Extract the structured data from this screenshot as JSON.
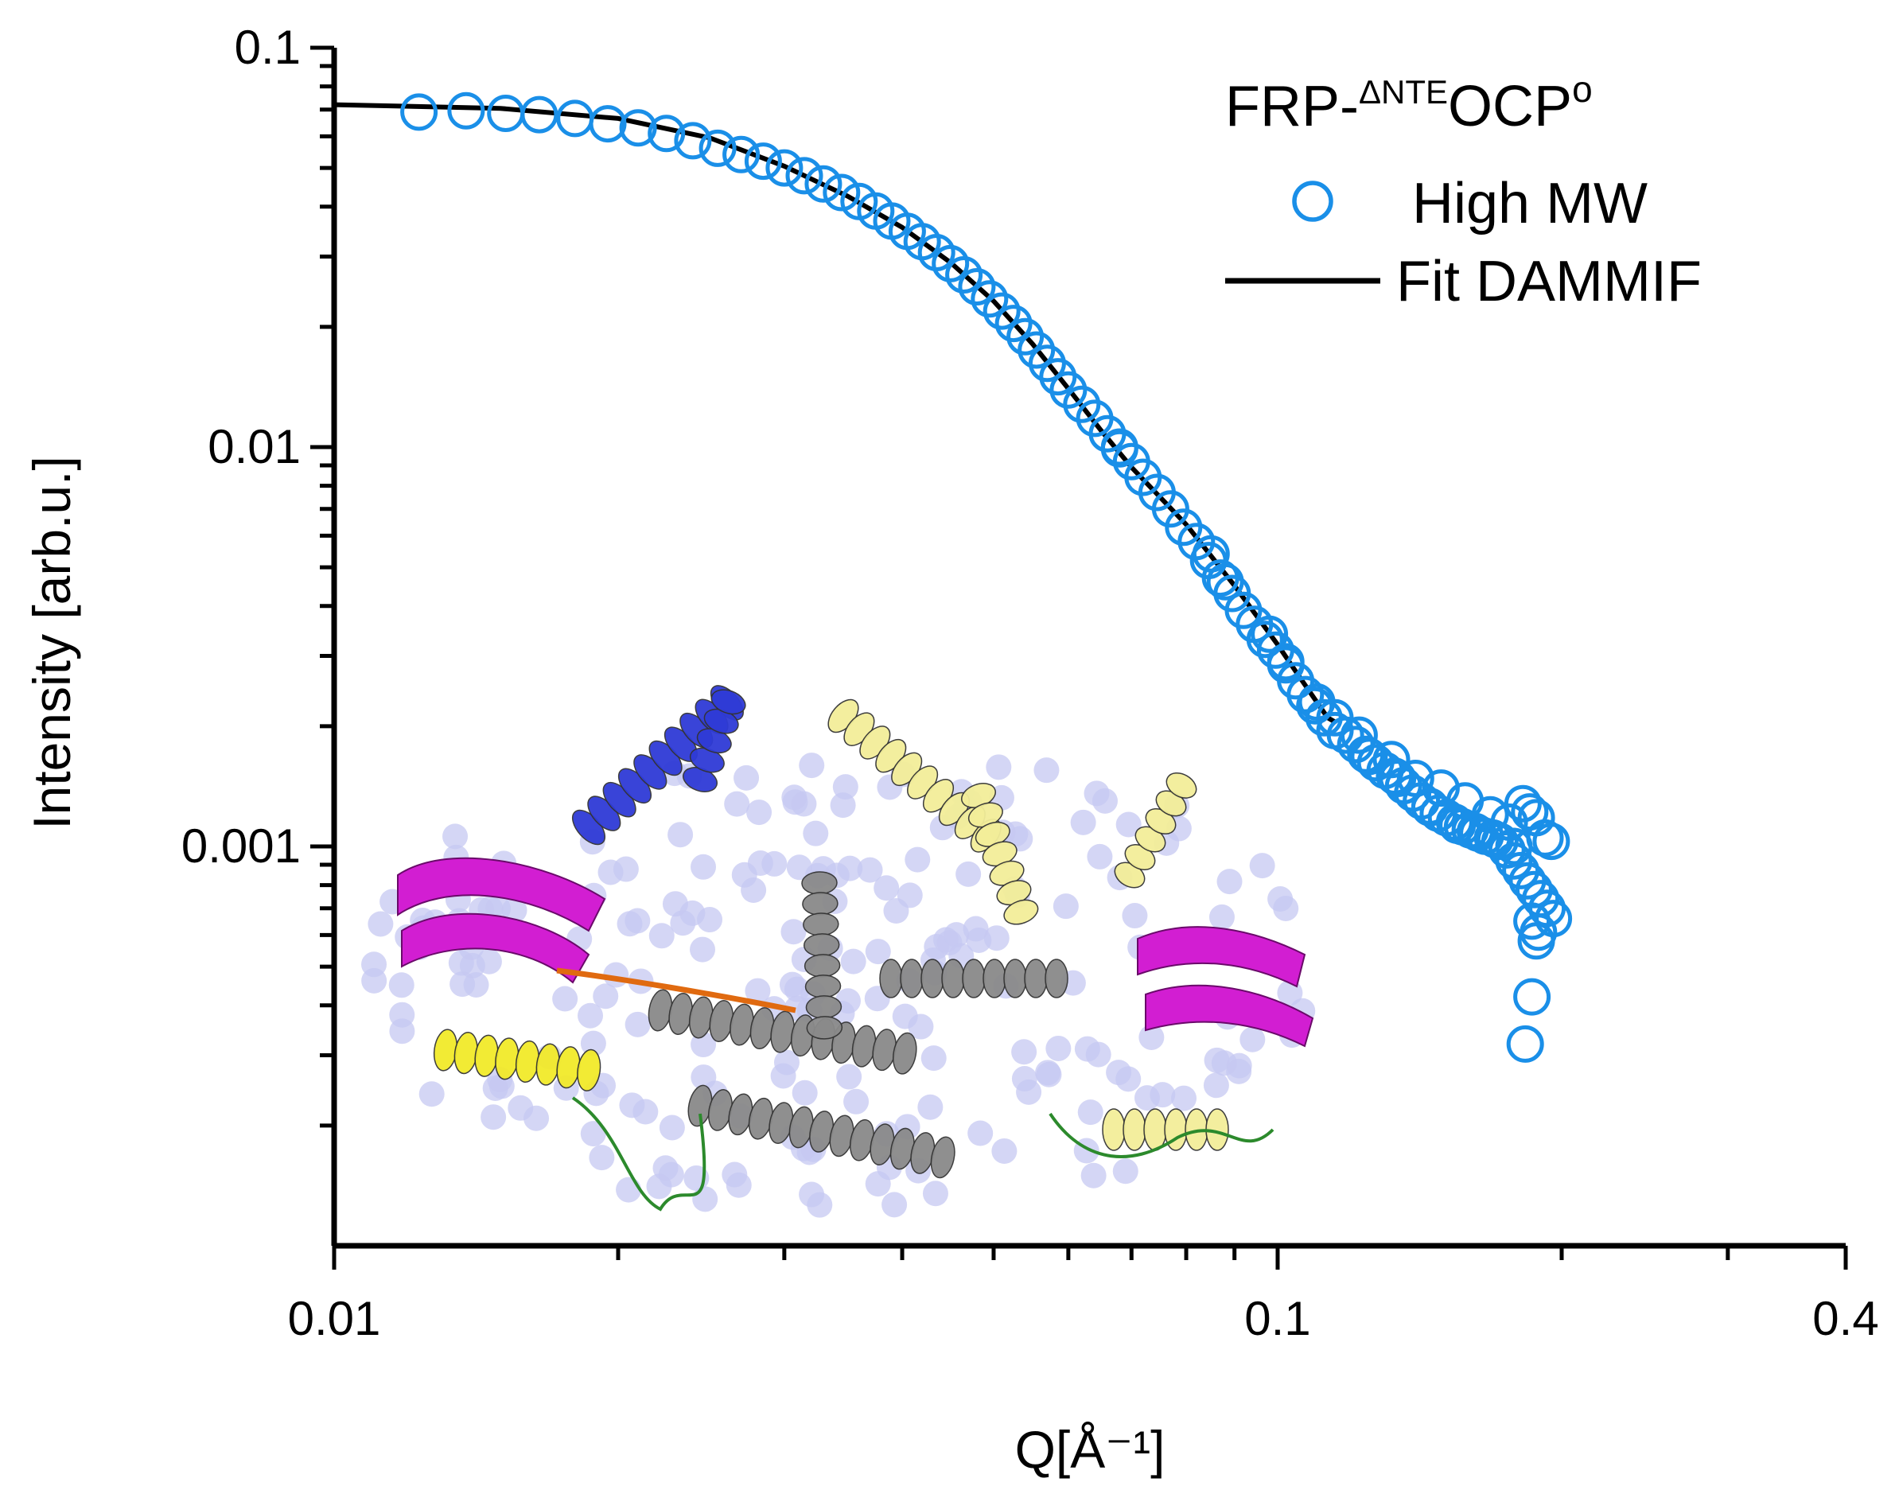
{
  "chart_data": {
    "type": "scatter",
    "xscale": "log",
    "yscale": "log",
    "xlim": [
      0.01,
      0.4
    ],
    "ylim": [
      0.0001,
      0.1
    ],
    "xlabel": "Q[Å⁻¹]",
    "ylabel": "Intensity [arb.u.]",
    "xticklabels": [
      {
        "value": 0.01,
        "label": "0.01"
      },
      {
        "value": 0.1,
        "label": "0.1"
      },
      {
        "value": 0.4,
        "label": "0.4"
      }
    ],
    "yticklabels": [
      {
        "value": 0.1,
        "label": "0.1"
      },
      {
        "value": 0.01,
        "label": "0.01"
      },
      {
        "value": 0.001,
        "label": "0.001"
      }
    ],
    "legend": {
      "title_main": "FRP-",
      "title_sup": "ΔNTE",
      "title_tail": "OCP",
      "title_sup2": "o",
      "position": "top-right"
    },
    "series": [
      {
        "name": "High MW",
        "kind": "points",
        "marker": "open-circle",
        "color": "#1a8fe8",
        "points": [
          [
            0.0123,
            0.069
          ],
          [
            0.0138,
            0.0695
          ],
          [
            0.0152,
            0.0685
          ],
          [
            0.0165,
            0.068
          ],
          [
            0.018,
            0.0665
          ],
          [
            0.0195,
            0.0645
          ],
          [
            0.021,
            0.063
          ],
          [
            0.0225,
            0.061
          ],
          [
            0.024,
            0.0585
          ],
          [
            0.0255,
            0.056
          ],
          [
            0.027,
            0.054
          ],
          [
            0.0285,
            0.052
          ],
          [
            0.03,
            0.05
          ],
          [
            0.0315,
            0.0478
          ],
          [
            0.033,
            0.0456
          ],
          [
            0.0345,
            0.0434
          ],
          [
            0.036,
            0.0412
          ],
          [
            0.0375,
            0.039
          ],
          [
            0.039,
            0.0368
          ],
          [
            0.0405,
            0.0347
          ],
          [
            0.042,
            0.0327
          ],
          [
            0.0435,
            0.0307
          ],
          [
            0.045,
            0.0288
          ],
          [
            0.0465,
            0.027
          ],
          [
            0.048,
            0.0252
          ],
          [
            0.0495,
            0.0235
          ],
          [
            0.051,
            0.0219
          ],
          [
            0.0525,
            0.0204
          ],
          [
            0.054,
            0.0189
          ],
          [
            0.0555,
            0.0175
          ],
          [
            0.057,
            0.0162
          ],
          [
            0.0585,
            0.015
          ],
          [
            0.06,
            0.0139
          ],
          [
            0.062,
            0.0128
          ],
          [
            0.064,
            0.0118
          ],
          [
            0.066,
            0.0108
          ],
          [
            0.068,
            0.0099
          ],
          [
            0.07,
            0.0092
          ],
          [
            0.072,
            0.0084
          ],
          [
            0.0745,
            0.0077
          ],
          [
            0.077,
            0.007
          ],
          [
            0.0795,
            0.0063
          ],
          [
            0.082,
            0.0058
          ],
          [
            0.0845,
            0.0052
          ],
          [
            0.087,
            0.0047
          ],
          [
            0.0895,
            0.0043
          ],
          [
            0.092,
            0.0039
          ],
          [
            0.0945,
            0.0036
          ],
          [
            0.097,
            0.0033
          ],
          [
            0.0995,
            0.0031
          ],
          [
            0.102,
            0.00285
          ],
          [
            0.1045,
            0.0026
          ],
          [
            0.107,
            0.0024
          ],
          [
            0.1095,
            0.00225
          ],
          [
            0.112,
            0.0021
          ],
          [
            0.115,
            0.00195
          ],
          [
            0.118,
            0.0019
          ],
          [
            0.121,
            0.0018
          ],
          [
            0.124,
            0.0017
          ],
          [
            0.127,
            0.00162
          ],
          [
            0.13,
            0.00155
          ],
          [
            0.133,
            0.0015
          ],
          [
            0.136,
            0.00142
          ],
          [
            0.139,
            0.00136
          ],
          [
            0.142,
            0.0013
          ],
          [
            0.145,
            0.00125
          ],
          [
            0.148,
            0.00121
          ],
          [
            0.151,
            0.00118
          ],
          [
            0.154,
            0.00115
          ],
          [
            0.157,
            0.00112
          ],
          [
            0.16,
            0.0011
          ],
          [
            0.163,
            0.00108
          ],
          [
            0.166,
            0.00106
          ],
          [
            0.169,
            0.00105
          ],
          [
            0.172,
            0.00103
          ],
          [
            0.175,
            0.00098
          ],
          [
            0.178,
            0.00092
          ],
          [
            0.181,
            0.00087
          ],
          [
            0.184,
            0.00082
          ],
          [
            0.187,
            0.00078
          ],
          [
            0.19,
            0.00074
          ],
          [
            0.193,
            0.0007
          ],
          [
            0.196,
            0.00066
          ],
          [
            0.068,
            0.01
          ],
          [
            0.085,
            0.0054
          ],
          [
            0.102,
            0.0029
          ],
          [
            0.115,
            0.0021
          ],
          [
            0.125,
            0.00168
          ],
          [
            0.134,
            0.00148
          ],
          [
            0.145,
            0.00126
          ],
          [
            0.155,
            0.00113
          ],
          [
            0.162,
            0.00109
          ],
          [
            0.17,
            0.00104
          ],
          [
            0.178,
            0.001
          ],
          [
            0.185,
            0.00122
          ],
          [
            0.188,
            0.00118
          ],
          [
            0.192,
            0.00105
          ],
          [
            0.195,
            0.00103
          ],
          [
            0.182,
            0.00128
          ],
          [
            0.176,
            0.00115
          ],
          [
            0.168,
            0.0012
          ],
          [
            0.158,
            0.0013
          ],
          [
            0.149,
            0.0014
          ],
          [
            0.14,
            0.00148
          ],
          [
            0.132,
            0.00165
          ],
          [
            0.122,
            0.0019
          ],
          [
            0.11,
            0.0023
          ],
          [
            0.098,
            0.0034
          ],
          [
            0.088,
            0.0046
          ],
          [
            0.186,
            0.00065
          ],
          [
            0.188,
            0.00058
          ],
          [
            0.186,
            0.00042
          ],
          [
            0.183,
            0.00032
          ],
          [
            0.189,
            0.00061
          ]
        ]
      },
      {
        "name": "Fit DAMMIF",
        "kind": "line",
        "color": "#000000",
        "points": [
          [
            0.01,
            0.072
          ],
          [
            0.015,
            0.0705
          ],
          [
            0.02,
            0.0665
          ],
          [
            0.025,
            0.0595
          ],
          [
            0.03,
            0.0505
          ],
          [
            0.035,
            0.0425
          ],
          [
            0.04,
            0.0355
          ],
          [
            0.045,
            0.029
          ],
          [
            0.05,
            0.0232
          ],
          [
            0.055,
            0.0181
          ],
          [
            0.06,
            0.014
          ],
          [
            0.065,
            0.011
          ],
          [
            0.07,
            0.0089
          ],
          [
            0.08,
            0.0064
          ],
          [
            0.09,
            0.0045
          ],
          [
            0.1,
            0.0032
          ],
          [
            0.105,
            0.0027
          ],
          [
            0.11,
            0.0023
          ],
          [
            0.113,
            0.0021
          ],
          [
            0.115,
            0.00205
          ]
        ]
      }
    ],
    "inset": {
      "kind": "molecular-structure-illustration",
      "colors": [
        "#c6c8f2",
        "#2f3bd6",
        "#d21ed2",
        "#f2ea2a",
        "#f3ee99",
        "#8a8a8a",
        "#2c8a2c",
        "#e06a10"
      ]
    }
  }
}
